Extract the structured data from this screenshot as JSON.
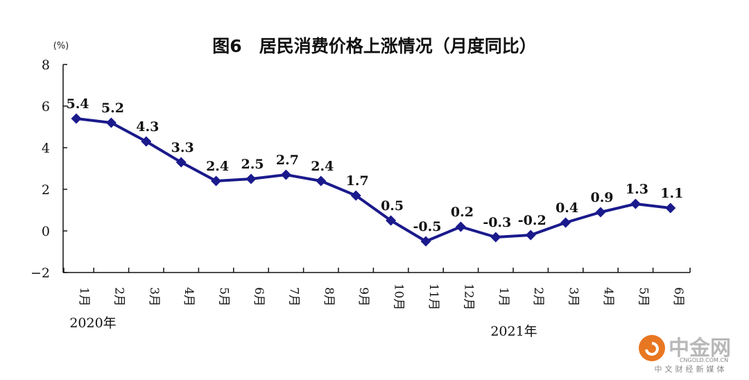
{
  "chart_data": {
    "type": "line",
    "title": "图6　居民消费价格上涨情况（月度同比）",
    "yunit": "(%)",
    "ylim": [
      -2,
      8
    ],
    "yticks": [
      8,
      6,
      4,
      2,
      0,
      -2
    ],
    "ytick_labels": [
      "8",
      "6",
      "4",
      "2",
      "0",
      "−2"
    ],
    "categories": [
      "1月",
      "2月",
      "3月",
      "4月",
      "5月",
      "6月",
      "7月",
      "8月",
      "9月",
      "10月",
      "11月",
      "12月",
      "1月",
      "2月",
      "3月",
      "4月",
      "5月",
      "6月"
    ],
    "values": [
      5.4,
      5.2,
      4.3,
      3.3,
      2.4,
      2.5,
      2.7,
      2.4,
      1.7,
      0.5,
      -0.5,
      0.2,
      -0.3,
      -0.2,
      0.4,
      0.9,
      1.3,
      1.1
    ],
    "value_labels": [
      "5.4",
      "5.2",
      "4.3",
      "3.3",
      "2.4",
      "2.5",
      "2.7",
      "2.4",
      "1.7",
      "0.5",
      "-0.5",
      "0.2",
      "-0.3",
      "-0.2",
      "0.4",
      "0.9",
      "1.3",
      "1.1"
    ],
    "year_labels": [
      "2020年",
      "2021年"
    ],
    "line_color": "#1a1a8c",
    "grid": false,
    "legend": "none"
  },
  "watermark": {
    "name": "中金网",
    "url": "CNGOLD.COM.CN",
    "subtitle": "中文财经新媒体",
    "color": "#e87722"
  }
}
